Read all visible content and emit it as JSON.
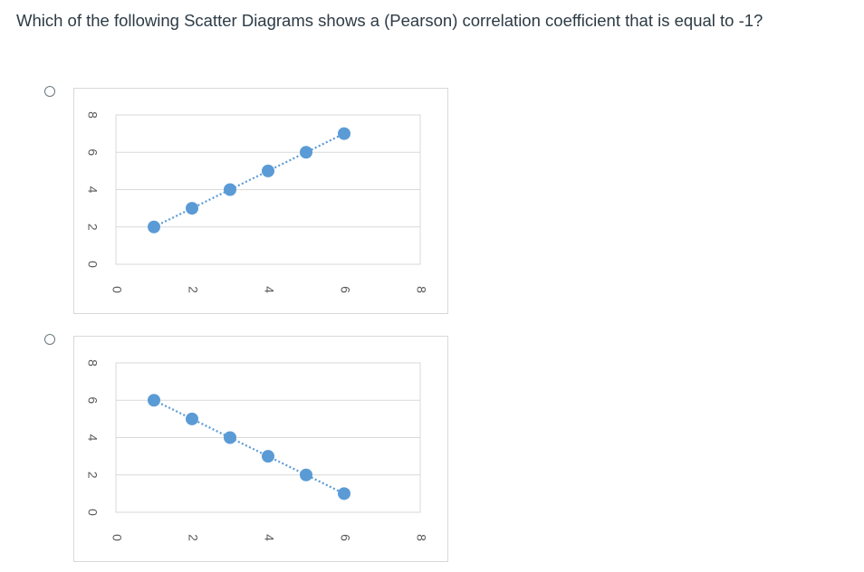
{
  "question": {
    "text": "Which of the following Scatter Diagrams shows a (Pearson) correlation coefficient that is equal to -1?"
  },
  "options": [
    {
      "id": "option-1",
      "selected": false
    },
    {
      "id": "option-2",
      "selected": false
    }
  ],
  "chart_data": [
    {
      "type": "scatter",
      "trendline": "dotted",
      "point_color": "#5b9bd5",
      "grid_color": "#d9d9d9",
      "xlim": [
        0,
        8
      ],
      "ylim": [
        0,
        8
      ],
      "x_ticks": [
        "0",
        "2",
        "4",
        "6",
        "8"
      ],
      "y_ticks": [
        "0",
        "2",
        "4",
        "6",
        "8"
      ],
      "grid": true,
      "points": [
        {
          "x": 1,
          "y": 2
        },
        {
          "x": 2,
          "y": 3
        },
        {
          "x": 3,
          "y": 4
        },
        {
          "x": 4,
          "y": 5
        },
        {
          "x": 5,
          "y": 6
        },
        {
          "x": 6,
          "y": 7
        }
      ]
    },
    {
      "type": "scatter",
      "trendline": "dotted",
      "point_color": "#5b9bd5",
      "grid_color": "#d9d9d9",
      "xlim": [
        0,
        8
      ],
      "ylim": [
        0,
        8
      ],
      "x_ticks": [
        "0",
        "2",
        "4",
        "6",
        "8"
      ],
      "y_ticks": [
        "0",
        "2",
        "4",
        "6",
        "8"
      ],
      "grid": true,
      "points": [
        {
          "x": 1,
          "y": 6
        },
        {
          "x": 2,
          "y": 5
        },
        {
          "x": 3,
          "y": 4
        },
        {
          "x": 4,
          "y": 3
        },
        {
          "x": 5,
          "y": 2
        },
        {
          "x": 6,
          "y": 1
        }
      ]
    }
  ]
}
